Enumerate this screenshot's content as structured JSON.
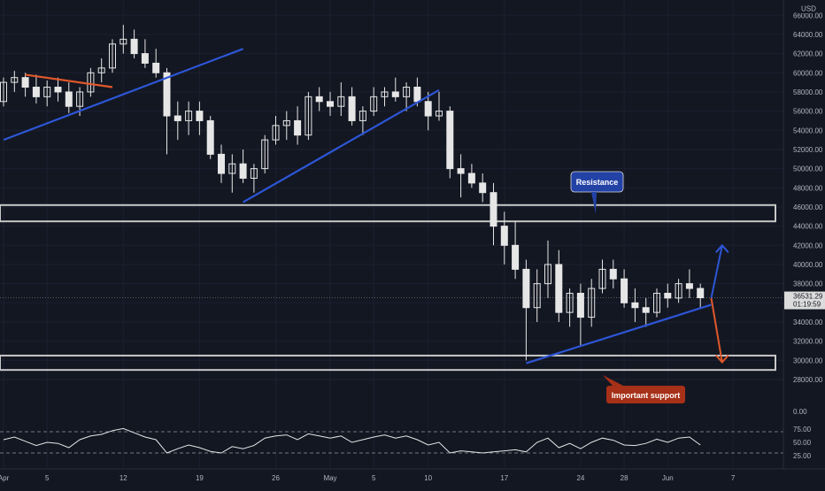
{
  "currency": "USD",
  "price_axis": {
    "ticks": [
      28000,
      30000,
      32000,
      34000,
      36000,
      38000,
      40000,
      42000,
      44000,
      46000,
      48000,
      50000,
      52000,
      54000,
      56000,
      58000,
      60000,
      62000,
      64000,
      66000
    ],
    "last_price": "36531.29",
    "countdown": "01:19:59"
  },
  "rsi_axis": {
    "ticks": [
      "75.00",
      "50.00",
      "25.00"
    ],
    "zero": "0.00"
  },
  "time_axis": {
    "labels": [
      {
        "t": 0,
        "text": "Apr"
      },
      {
        "t": 4,
        "text": "5"
      },
      {
        "t": 11,
        "text": "12"
      },
      {
        "t": 18,
        "text": "19"
      },
      {
        "t": 25,
        "text": "26"
      },
      {
        "t": 30,
        "text": "May"
      },
      {
        "t": 34,
        "text": "5"
      },
      {
        "t": 39,
        "text": "10"
      },
      {
        "t": 46,
        "text": "17"
      },
      {
        "t": 53,
        "text": "24"
      },
      {
        "t": 57,
        "text": "28"
      },
      {
        "t": 61,
        "text": "Jun"
      },
      {
        "t": 67,
        "text": "7"
      }
    ]
  },
  "annotations": {
    "resistance": "Resistance",
    "support": "Important support"
  },
  "colors": {
    "background": "#131722",
    "candle": "#e6e6e6",
    "trend_blue": "#2d56d6",
    "trend_orange": "#e0582a",
    "zone_border": "#c8c8c8",
    "resistance_bg": "#2342a6",
    "support_bg": "#a63018"
  },
  "chart_data": {
    "type": "candlestick",
    "symbol_currency": "USD",
    "x_unit": "days since Apr 1",
    "ylim": [
      28000,
      67500
    ],
    "candles": [
      [
        0,
        57000,
        59500,
        56500,
        59000
      ],
      [
        1,
        59000,
        60200,
        58000,
        59500
      ],
      [
        2,
        59500,
        60000,
        57500,
        58500
      ],
      [
        3,
        58500,
        59800,
        56800,
        57500
      ],
      [
        4,
        57500,
        59200,
        56500,
        58500
      ],
      [
        5,
        58500,
        59500,
        57000,
        58000
      ],
      [
        6,
        58000,
        59000,
        55800,
        56500
      ],
      [
        7,
        56500,
        58500,
        55500,
        58000
      ],
      [
        8,
        58000,
        60500,
        57500,
        60000
      ],
      [
        9,
        60000,
        61500,
        59000,
        60500
      ],
      [
        10,
        60500,
        63500,
        60000,
        63000
      ],
      [
        11,
        63000,
        65000,
        62000,
        63500
      ],
      [
        12,
        63500,
        64500,
        61500,
        62000
      ],
      [
        13,
        62000,
        63500,
        60500,
        61000
      ],
      [
        14,
        61000,
        62500,
        59500,
        60000
      ],
      [
        15,
        60000,
        60500,
        51500,
        55500
      ],
      [
        16,
        55500,
        57000,
        53000,
        55000
      ],
      [
        17,
        55000,
        57000,
        53500,
        56000
      ],
      [
        18,
        56000,
        57000,
        53500,
        55000
      ],
      [
        19,
        55000,
        55500,
        51000,
        51500
      ],
      [
        20,
        51500,
        52500,
        48500,
        49500
      ],
      [
        21,
        49500,
        51500,
        47500,
        50500
      ],
      [
        22,
        50500,
        52000,
        48500,
        49000
      ],
      [
        23,
        49000,
        50500,
        47500,
        50000
      ],
      [
        24,
        50000,
        53500,
        49500,
        53000
      ],
      [
        25,
        53000,
        55500,
        52500,
        54500
      ],
      [
        26,
        54500,
        56000,
        53000,
        55000
      ],
      [
        27,
        55000,
        56500,
        52500,
        53500
      ],
      [
        28,
        53500,
        58000,
        53000,
        57500
      ],
      [
        29,
        57500,
        58500,
        56000,
        57000
      ],
      [
        30,
        57000,
        58000,
        55500,
        56500
      ],
      [
        31,
        56500,
        59000,
        55500,
        57500
      ],
      [
        32,
        57500,
        58500,
        54500,
        55000
      ],
      [
        33,
        55000,
        56500,
        53500,
        56000
      ],
      [
        34,
        56000,
        58500,
        55500,
        57500
      ],
      [
        35,
        57500,
        58500,
        56500,
        58000
      ],
      [
        36,
        58000,
        59500,
        57000,
        57500
      ],
      [
        37,
        57500,
        59000,
        56000,
        58500
      ],
      [
        38,
        58500,
        59500,
        56500,
        57000
      ],
      [
        39,
        57000,
        58000,
        54000,
        55500
      ],
      [
        40,
        55500,
        58000,
        55000,
        56000
      ],
      [
        41,
        56000,
        56500,
        49000,
        50000
      ],
      [
        42,
        50000,
        51500,
        47000,
        49500
      ],
      [
        43,
        49500,
        50500,
        48000,
        48500
      ],
      [
        44,
        48500,
        49500,
        46500,
        47500
      ],
      [
        45,
        47500,
        48500,
        42000,
        44000
      ],
      [
        46,
        44000,
        45500,
        40000,
        42000
      ],
      [
        47,
        42000,
        44500,
        38500,
        39500
      ],
      [
        48,
        39500,
        40500,
        30000,
        35500
      ],
      [
        49,
        35500,
        39500,
        34000,
        38000
      ],
      [
        50,
        38000,
        42500,
        36500,
        40000
      ],
      [
        51,
        40000,
        41500,
        34000,
        35000
      ],
      [
        52,
        35000,
        37500,
        33500,
        37000
      ],
      [
        53,
        37000,
        38000,
        31500,
        34500
      ],
      [
        54,
        34500,
        38500,
        33500,
        37500
      ],
      [
        55,
        37500,
        40500,
        37000,
        39500
      ],
      [
        56,
        39500,
        40500,
        37500,
        38500
      ],
      [
        57,
        38500,
        39500,
        35500,
        36000
      ],
      [
        58,
        36000,
        37500,
        34000,
        35500
      ],
      [
        59,
        35500,
        36500,
        33500,
        35000
      ],
      [
        60,
        35000,
        37500,
        34500,
        37000
      ],
      [
        61,
        37000,
        38000,
        35500,
        36500
      ],
      [
        62,
        36500,
        38500,
        36000,
        38000
      ],
      [
        63,
        38000,
        39500,
        36500,
        37500
      ],
      [
        64,
        37500,
        38000,
        35500,
        36531.29
      ]
    ],
    "rsi_ylim": [
      0,
      90
    ],
    "rsi_levels": [
      70,
      30
    ],
    "rsi": [
      [
        0,
        55
      ],
      [
        1,
        60
      ],
      [
        2,
        52
      ],
      [
        3,
        44
      ],
      [
        4,
        50
      ],
      [
        5,
        48
      ],
      [
        6,
        40
      ],
      [
        7,
        55
      ],
      [
        8,
        62
      ],
      [
        9,
        65
      ],
      [
        10,
        72
      ],
      [
        11,
        76
      ],
      [
        12,
        68
      ],
      [
        13,
        60
      ],
      [
        14,
        55
      ],
      [
        15,
        30
      ],
      [
        16,
        38
      ],
      [
        17,
        45
      ],
      [
        18,
        40
      ],
      [
        19,
        33
      ],
      [
        20,
        30
      ],
      [
        21,
        42
      ],
      [
        22,
        38
      ],
      [
        23,
        44
      ],
      [
        24,
        58
      ],
      [
        25,
        62
      ],
      [
        26,
        64
      ],
      [
        27,
        55
      ],
      [
        28,
        66
      ],
      [
        29,
        62
      ],
      [
        30,
        58
      ],
      [
        31,
        62
      ],
      [
        32,
        50
      ],
      [
        33,
        55
      ],
      [
        34,
        60
      ],
      [
        35,
        64
      ],
      [
        36,
        58
      ],
      [
        37,
        62
      ],
      [
        38,
        55
      ],
      [
        39,
        45
      ],
      [
        40,
        50
      ],
      [
        41,
        30
      ],
      [
        42,
        34
      ],
      [
        43,
        32
      ],
      [
        44,
        30
      ],
      [
        45,
        32
      ],
      [
        46,
        34
      ],
      [
        47,
        36
      ],
      [
        48,
        32
      ],
      [
        49,
        50
      ],
      [
        50,
        58
      ],
      [
        51,
        40
      ],
      [
        52,
        48
      ],
      [
        53,
        38
      ],
      [
        54,
        50
      ],
      [
        55,
        58
      ],
      [
        56,
        54
      ],
      [
        57,
        45
      ],
      [
        58,
        44
      ],
      [
        59,
        48
      ],
      [
        60,
        56
      ],
      [
        61,
        50
      ],
      [
        62,
        58
      ],
      [
        63,
        60
      ],
      [
        64,
        45
      ]
    ],
    "trendlines": [
      {
        "color": "blue",
        "points": [
          [
            0,
            53000
          ],
          [
            22,
            62500
          ]
        ]
      },
      {
        "color": "orange",
        "points": [
          [
            2,
            59800
          ],
          [
            10,
            58500
          ]
        ]
      },
      {
        "color": "blue",
        "points": [
          [
            22,
            46500
          ],
          [
            40,
            58200
          ]
        ]
      },
      {
        "color": "blue",
        "points": [
          [
            48,
            29700
          ],
          [
            65,
            35800
          ]
        ]
      }
    ],
    "zones": [
      {
        "y": [
          44500,
          46200
        ]
      },
      {
        "y": [
          29000,
          30500
        ]
      }
    ],
    "arrows": [
      {
        "color": "blue",
        "from": [
          65,
          36500
        ],
        "to": [
          66,
          42000
        ]
      },
      {
        "color": "orange",
        "from": [
          65,
          36500
        ],
        "to": [
          66,
          29800
        ]
      }
    ]
  }
}
